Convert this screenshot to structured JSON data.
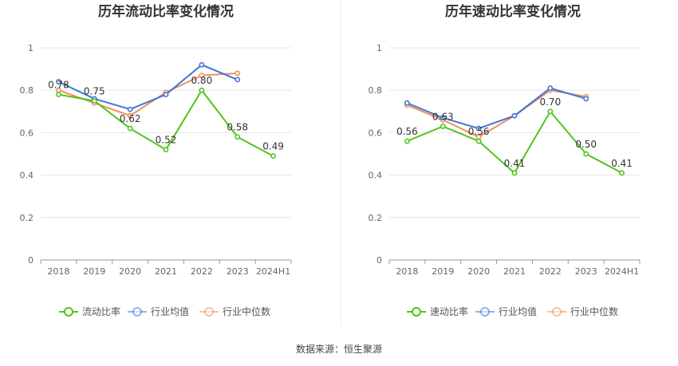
{
  "source": "数据来源：恒生聚源",
  "chart_data": [
    {
      "type": "line",
      "title": "历年流动比率变化情况",
      "categories": [
        "2018",
        "2019",
        "2020",
        "2021",
        "2022",
        "2023",
        "2024H1"
      ],
      "ylim": [
        0,
        1
      ],
      "yticks": [
        "0",
        "0.2",
        "0.4",
        "0.6",
        "0.8",
        "1"
      ],
      "grid": true,
      "legend_position": "bottom",
      "series": [
        {
          "name": "流动比率",
          "color": "#52c41a",
          "values": [
            0.78,
            0.75,
            0.62,
            0.52,
            0.8,
            0.58,
            0.49
          ],
          "labels": [
            "0.78",
            "0.75",
            "0.62",
            "0.52",
            "0.80",
            "0.58",
            "0.49"
          ]
        },
        {
          "name": "行业均值",
          "color": "#3f76d6",
          "values": [
            0.84,
            0.76,
            0.71,
            0.78,
            0.92,
            0.85,
            null
          ]
        },
        {
          "name": "行业中位数",
          "color": "#f0905a",
          "values": [
            0.8,
            0.74,
            0.68,
            0.79,
            0.87,
            0.88,
            null
          ]
        }
      ]
    },
    {
      "type": "line",
      "title": "历年速动比率变化情况",
      "categories": [
        "2018",
        "2019",
        "2020",
        "2021",
        "2022",
        "2023",
        "2024H1"
      ],
      "ylim": [
        0,
        1
      ],
      "yticks": [
        "0",
        "0.2",
        "0.4",
        "0.6",
        "0.8",
        "1"
      ],
      "grid": true,
      "legend_position": "bottom",
      "series": [
        {
          "name": "速动比率",
          "color": "#52c41a",
          "values": [
            0.56,
            0.63,
            0.56,
            0.41,
            0.7,
            0.5,
            0.41
          ],
          "labels": [
            "0.56",
            "0.63",
            "0.56",
            "0.41",
            "0.70",
            "0.50",
            "0.41"
          ]
        },
        {
          "name": "行业均值",
          "color": "#3f76d6",
          "values": [
            0.74,
            0.67,
            0.62,
            0.68,
            0.81,
            0.76,
            null
          ]
        },
        {
          "name": "行业中位数",
          "color": "#f0905a",
          "values": [
            0.73,
            0.66,
            0.58,
            0.68,
            0.8,
            0.77,
            null
          ]
        }
      ]
    }
  ]
}
